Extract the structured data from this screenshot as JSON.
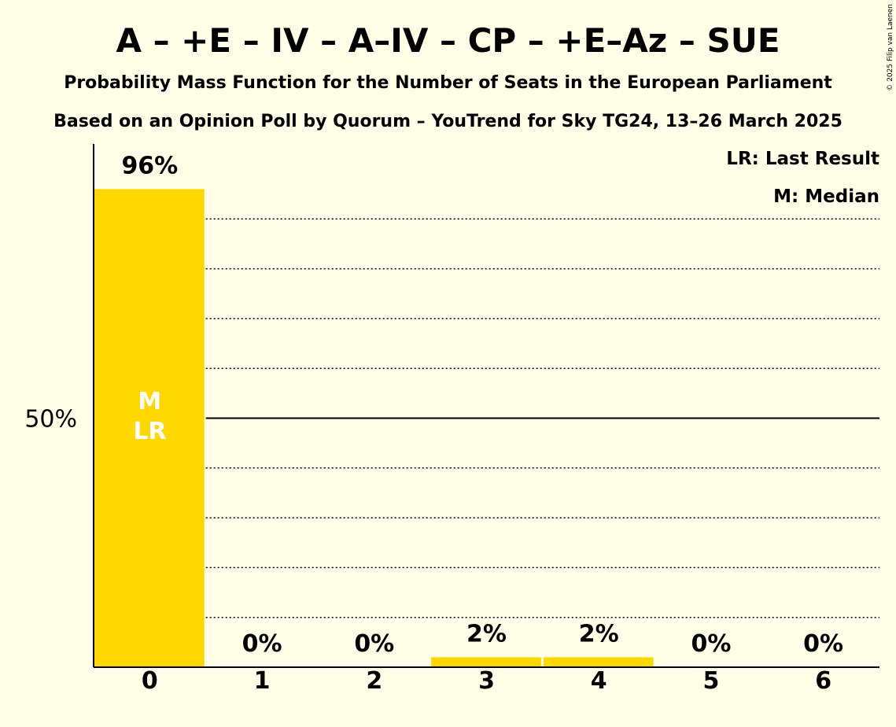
{
  "chart_data": {
    "type": "bar",
    "title": "A – +E – IV – A–IV – CP – +E–Az – SUE",
    "subtitle": "Probability Mass Function for the Number of Seats in the European Parliament",
    "subtitle2": "Based on an Opinion Poll by Quorum – YouTrend for Sky TG24, 13–26 March 2025",
    "copyright": "© 2025 Filip van Laenen",
    "categories": [
      "0",
      "1",
      "2",
      "3",
      "4",
      "5",
      "6"
    ],
    "values": [
      96,
      0,
      0,
      2,
      2,
      0,
      0
    ],
    "value_labels": [
      "96%",
      "0%",
      "0%",
      "2%",
      "2%",
      "0%",
      "0%"
    ],
    "ylim": [
      0,
      105
    ],
    "y_tick_label": "50%",
    "y_tick_value": 50,
    "gridline_step": 10,
    "grid": true,
    "bar_color": "#FFD700",
    "median_index": 0,
    "last_result_index": 0,
    "median_marker": "M",
    "last_result_marker": "LR",
    "legend": [
      "LR: Last Result",
      "M: Median"
    ],
    "legend_position": "top-right"
  }
}
